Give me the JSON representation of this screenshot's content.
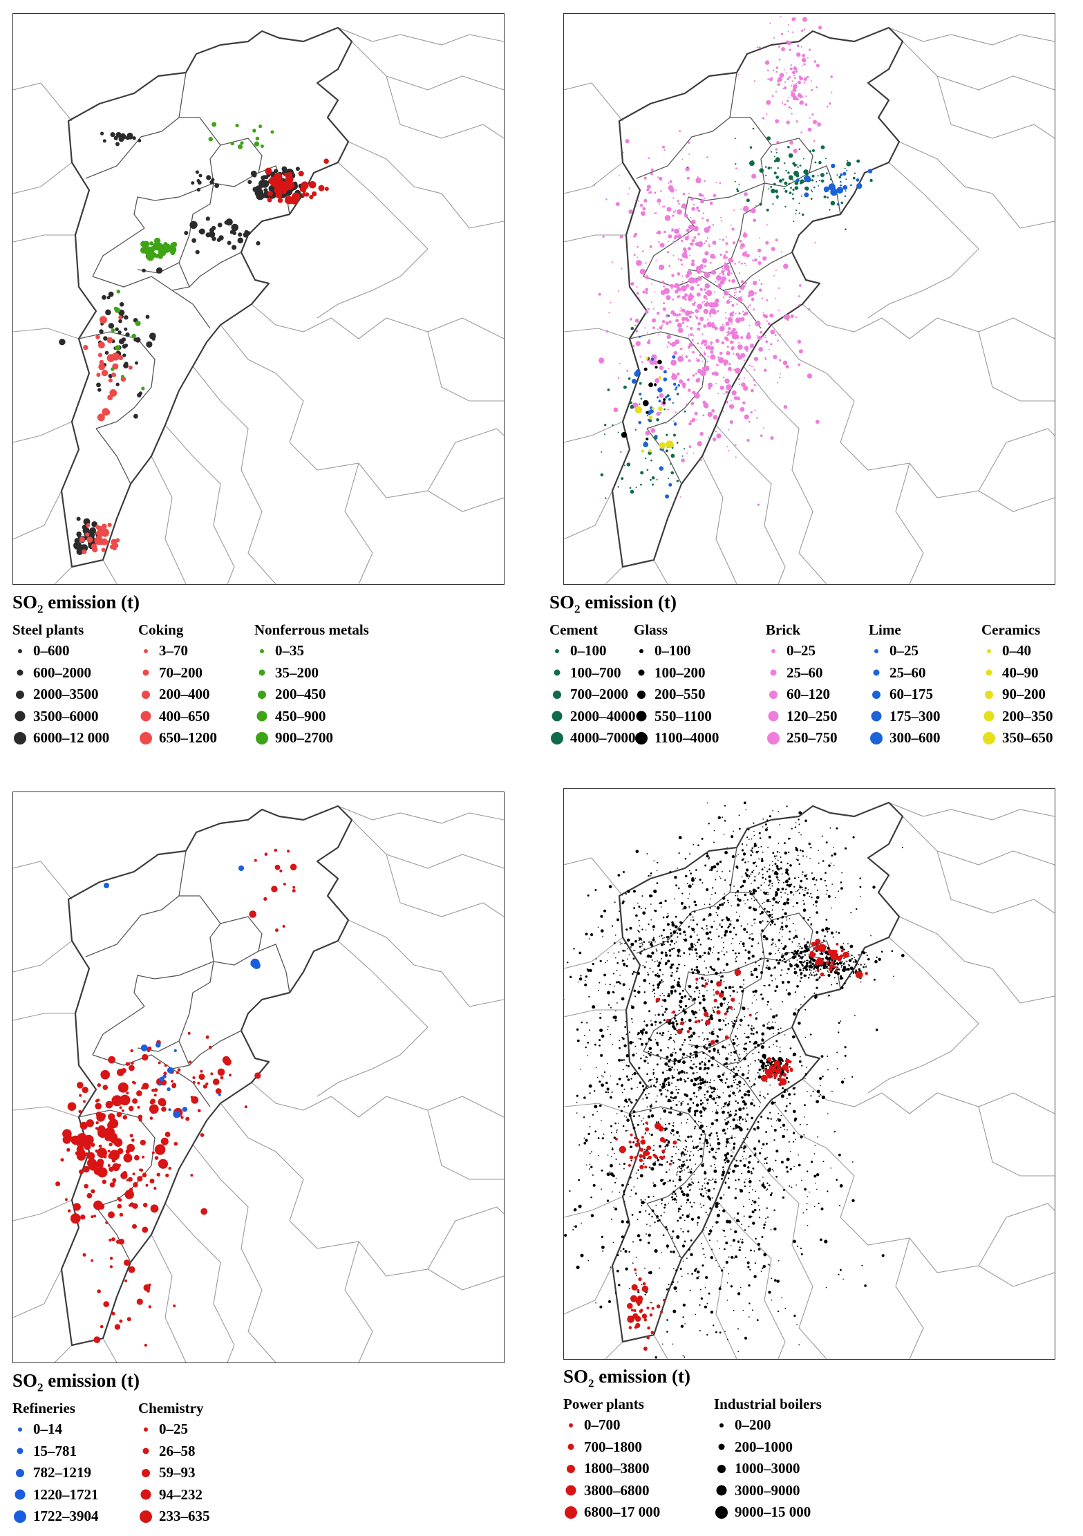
{
  "panels": [
    {
      "id": "a",
      "legend_title": "SO",
      "legend_title_sub": "2",
      "legend_title_rest": " emission  (t)",
      "groups": [
        {
          "name": "Steel plants",
          "color": "#2b2b2b",
          "items": [
            "0–600",
            "600–2000",
            "2000–3500",
            "3500–6000",
            "6000–12 000"
          ]
        },
        {
          "name": "Coking",
          "color": "#ef4a4a",
          "items": [
            "3–70",
            "70–200",
            "200–400",
            "400–650",
            "650–1200"
          ]
        },
        {
          "name": "Nonferrous metals",
          "color": "#3fa316",
          "items": [
            "0–35",
            "35–200",
            "200–450",
            "450–900",
            "900–2700"
          ]
        }
      ]
    },
    {
      "id": "b",
      "legend_title": "SO",
      "legend_title_sub": "2",
      "legend_title_rest": " emission  (t)",
      "groups": [
        {
          "name": "Cement",
          "color": "#0f6b4a",
          "items": [
            "0–100",
            "100–700",
            "700–2000",
            "2000–4000",
            "4000–7000"
          ]
        },
        {
          "name": "Glass",
          "color": "#000000",
          "items": [
            "0–100",
            "100–200",
            "200–550",
            "550–1100",
            "1100–4000"
          ]
        },
        {
          "name": "Brick",
          "color": "#ee7ddc",
          "items": [
            "0–25",
            "25–60",
            "60–120",
            "120–250",
            "250–750"
          ]
        },
        {
          "name": "Lime",
          "color": "#1a63d8",
          "items": [
            "0–25",
            "25–60",
            "60–175",
            "175–300",
            "300–600"
          ]
        },
        {
          "name": "Ceramics",
          "color": "#e6e01a",
          "items": [
            "0–40",
            "40–90",
            "90–200",
            "200–350",
            "350–650"
          ]
        }
      ]
    },
    {
      "id": "c",
      "legend_title": "SO",
      "legend_title_sub": "2",
      "legend_title_rest": " emission  (t)",
      "groups": [
        {
          "name": "Refineries",
          "color": "#1a5ee0",
          "items": [
            "0–14",
            "15–781",
            "782–1219",
            "1220–1721",
            "1722–3904"
          ]
        },
        {
          "name": "Chemistry",
          "color": "#d81414",
          "items": [
            "0–25",
            "26–58",
            "59–93",
            "94–232",
            "233–635"
          ]
        }
      ]
    },
    {
      "id": "d",
      "legend_title": "SO",
      "legend_title_sub": "2",
      "legend_title_rest": " emission  (t)",
      "groups": [
        {
          "name": "Power plants",
          "color": "#d81414",
          "items": [
            "0–700",
            "700–1800",
            "1800–3800",
            "3800–6800",
            "6800–17 000"
          ]
        },
        {
          "name": "Industrial boilers",
          "color": "#000000",
          "items": [
            "0–200",
            "200–1000",
            "1000–3000",
            "3000–9000",
            "9000–15 000"
          ]
        }
      ]
    }
  ]
}
